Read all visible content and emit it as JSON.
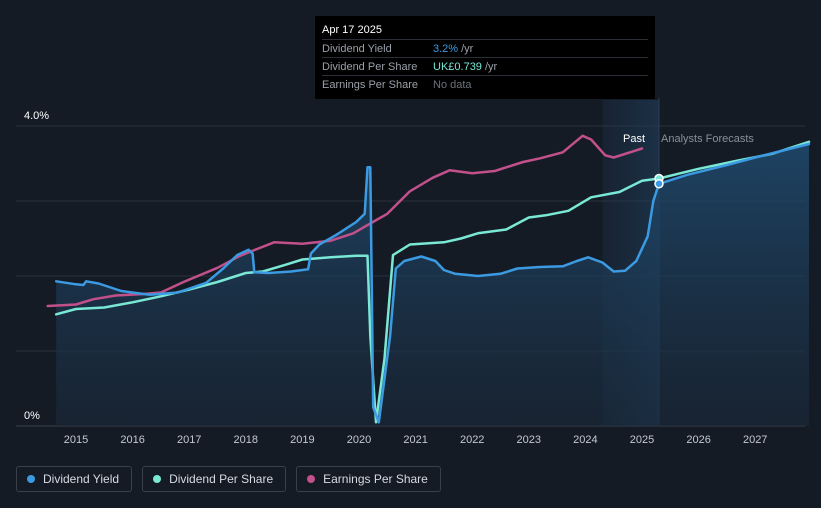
{
  "tooltip": {
    "date": "Apr 17 2025",
    "rows": [
      {
        "label": "Dividend Yield",
        "value": "3.2%",
        "unit": "/yr",
        "color": "#3b9ae1"
      },
      {
        "label": "Dividend Per Share",
        "value": "UK£0.739",
        "unit": "/yr",
        "color": "#79e8d5"
      },
      {
        "label": "Earnings Per Share",
        "value": "No data",
        "unit": "",
        "color": "#6c727a"
      }
    ]
  },
  "region_labels": {
    "past": "Past",
    "forecast": "Analysts Forecasts"
  },
  "legend": [
    {
      "label": "Dividend Yield",
      "color": "#3b9ae1"
    },
    {
      "label": "Dividend Per Share",
      "color": "#79e8d5"
    },
    {
      "label": "Earnings Per Share",
      "color": "#c2508b"
    }
  ],
  "chart_data": {
    "type": "line",
    "y_tick_labels": [
      "4.0%",
      "0%"
    ],
    "ylim": [
      0,
      4.0
    ],
    "x_ticks": [
      2015,
      2016,
      2017,
      2018,
      2019,
      2020,
      2021,
      2022,
      2023,
      2024,
      2025,
      2026,
      2027
    ],
    "xlim": [
      2014.5,
      2027.95
    ],
    "grid": true,
    "past_forecast_boundary": 2025.3,
    "highlight_range": [
      2024.3,
      2025.3
    ],
    "series": [
      {
        "name": "Dividend Yield",
        "color": "#3b9ae1",
        "fill": true,
        "points": [
          [
            2014.65,
            1.93
          ],
          [
            2015.0,
            1.89
          ],
          [
            2015.13,
            1.88
          ],
          [
            2015.18,
            1.93
          ],
          [
            2015.4,
            1.9
          ],
          [
            2015.8,
            1.8
          ],
          [
            2016.3,
            1.75
          ],
          [
            2016.8,
            1.78
          ],
          [
            2017.3,
            1.91
          ],
          [
            2017.6,
            2.1
          ],
          [
            2017.85,
            2.28
          ],
          [
            2018.05,
            2.35
          ],
          [
            2018.12,
            2.3
          ],
          [
            2018.15,
            2.05
          ],
          [
            2018.4,
            2.04
          ],
          [
            2018.8,
            2.06
          ],
          [
            2019.1,
            2.09
          ],
          [
            2019.15,
            2.3
          ],
          [
            2019.3,
            2.42
          ],
          [
            2019.6,
            2.55
          ],
          [
            2019.95,
            2.72
          ],
          [
            2020.1,
            2.83
          ],
          [
            2020.15,
            3.45
          ],
          [
            2020.2,
            3.45
          ],
          [
            2020.25,
            0.25
          ],
          [
            2020.35,
            0.05
          ],
          [
            2020.55,
            1.2
          ],
          [
            2020.65,
            2.1
          ],
          [
            2020.8,
            2.2
          ],
          [
            2021.1,
            2.26
          ],
          [
            2021.35,
            2.2
          ],
          [
            2021.5,
            2.08
          ],
          [
            2021.7,
            2.03
          ],
          [
            2022.1,
            2.0
          ],
          [
            2022.5,
            2.03
          ],
          [
            2022.8,
            2.1
          ],
          [
            2023.2,
            2.12
          ],
          [
            2023.6,
            2.13
          ],
          [
            2023.85,
            2.2
          ],
          [
            2024.05,
            2.25
          ],
          [
            2024.3,
            2.18
          ],
          [
            2024.5,
            2.06
          ],
          [
            2024.7,
            2.07
          ],
          [
            2024.9,
            2.2
          ],
          [
            2025.1,
            2.53
          ],
          [
            2025.2,
            3.0
          ],
          [
            2025.3,
            3.23
          ],
          [
            2025.8,
            3.35
          ],
          [
            2026.5,
            3.48
          ],
          [
            2027.0,
            3.58
          ],
          [
            2027.95,
            3.76
          ]
        ]
      },
      {
        "name": "Dividend Per Share",
        "color": "#79e8d5",
        "fill": false,
        "points": [
          [
            2014.65,
            1.49
          ],
          [
            2015.0,
            1.56
          ],
          [
            2015.5,
            1.58
          ],
          [
            2016.0,
            1.65
          ],
          [
            2016.5,
            1.73
          ],
          [
            2017.0,
            1.82
          ],
          [
            2017.5,
            1.92
          ],
          [
            2018.0,
            2.04
          ],
          [
            2018.3,
            2.06
          ],
          [
            2018.7,
            2.15
          ],
          [
            2019.0,
            2.22
          ],
          [
            2019.5,
            2.25
          ],
          [
            2019.95,
            2.27
          ],
          [
            2020.15,
            2.27
          ],
          [
            2020.2,
            1.2
          ],
          [
            2020.3,
            0.05
          ],
          [
            2020.45,
            0.9
          ],
          [
            2020.6,
            2.28
          ],
          [
            2020.9,
            2.42
          ],
          [
            2021.5,
            2.45
          ],
          [
            2021.8,
            2.5
          ],
          [
            2022.1,
            2.57
          ],
          [
            2022.6,
            2.62
          ],
          [
            2023.0,
            2.78
          ],
          [
            2023.3,
            2.81
          ],
          [
            2023.7,
            2.87
          ],
          [
            2024.1,
            3.05
          ],
          [
            2024.6,
            3.12
          ],
          [
            2025.0,
            3.27
          ],
          [
            2025.3,
            3.3
          ],
          [
            2026.0,
            3.43
          ],
          [
            2026.7,
            3.54
          ],
          [
            2027.3,
            3.63
          ],
          [
            2027.95,
            3.79
          ]
        ]
      },
      {
        "name": "Earnings Per Share",
        "color": "#c2508b",
        "fill": false,
        "points": [
          [
            2014.5,
            1.6
          ],
          [
            2015.0,
            1.62
          ],
          [
            2015.3,
            1.69
          ],
          [
            2015.7,
            1.74
          ],
          [
            2016.2,
            1.76
          ],
          [
            2016.5,
            1.78
          ],
          [
            2016.9,
            1.92
          ],
          [
            2017.5,
            2.11
          ],
          [
            2017.9,
            2.27
          ],
          [
            2018.2,
            2.36
          ],
          [
            2018.5,
            2.45
          ],
          [
            2019.0,
            2.43
          ],
          [
            2019.5,
            2.47
          ],
          [
            2019.9,
            2.57
          ],
          [
            2020.2,
            2.7
          ],
          [
            2020.5,
            2.83
          ],
          [
            2020.9,
            3.13
          ],
          [
            2021.3,
            3.31
          ],
          [
            2021.6,
            3.41
          ],
          [
            2022.0,
            3.37
          ],
          [
            2022.4,
            3.4
          ],
          [
            2022.9,
            3.52
          ],
          [
            2023.2,
            3.57
          ],
          [
            2023.6,
            3.65
          ],
          [
            2023.95,
            3.87
          ],
          [
            2024.1,
            3.82
          ],
          [
            2024.35,
            3.61
          ],
          [
            2024.5,
            3.58
          ],
          [
            2025.0,
            3.7
          ]
        ]
      }
    ]
  }
}
